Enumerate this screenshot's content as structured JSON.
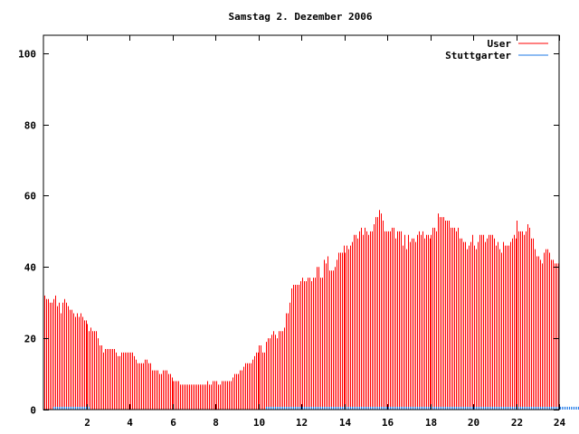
{
  "chart_data": {
    "type": "bar",
    "style": "impulses",
    "title": "Samstag 2. Dezember 2006",
    "xlabel": "",
    "ylabel": "",
    "xlim": [
      0,
      24
    ],
    "ylim": [
      0,
      105
    ],
    "x_step_minutes": 5,
    "xticks": [
      2,
      4,
      6,
      8,
      10,
      12,
      14,
      16,
      18,
      20,
      22,
      24
    ],
    "yticks": [
      0,
      20,
      40,
      60,
      80,
      100
    ],
    "grid": false,
    "legend_position": "top-right",
    "series": [
      {
        "name": "User",
        "color": "#ff0000",
        "values": [
          32,
          31,
          31,
          30,
          30,
          31,
          32,
          29,
          30,
          27,
          30,
          31,
          30,
          29,
          28,
          28,
          27,
          26,
          27,
          26,
          27,
          26,
          25,
          25,
          24,
          22,
          23,
          22,
          22,
          22,
          20,
          18,
          18,
          16,
          17,
          17,
          17,
          17,
          17,
          17,
          16,
          15,
          15,
          16,
          16,
          16,
          16,
          16,
          16,
          16,
          15,
          14,
          13,
          13,
          13,
          13,
          14,
          14,
          13,
          13,
          11,
          11,
          11,
          11,
          10,
          10,
          11,
          11,
          11,
          10,
          10,
          9,
          8,
          8,
          8,
          8,
          7,
          7,
          7,
          7,
          7,
          7,
          7,
          7,
          7,
          7,
          7,
          7,
          7,
          7,
          7,
          8,
          7,
          7,
          8,
          8,
          8,
          7,
          7,
          8,
          8,
          8,
          8,
          8,
          8,
          9,
          10,
          10,
          10,
          11,
          11,
          12,
          13,
          13,
          13,
          13,
          14,
          15,
          16,
          16,
          18,
          18,
          16,
          16,
          19,
          20,
          20,
          21,
          22,
          21,
          20,
          22,
          22,
          22,
          23,
          27,
          27,
          30,
          34,
          35,
          35,
          35,
          35,
          36,
          37,
          36,
          36,
          37,
          37,
          36,
          37,
          37,
          40,
          40,
          37,
          37,
          42,
          41,
          43,
          39,
          39,
          39,
          40,
          42,
          44,
          44,
          44,
          46,
          44,
          46,
          45,
          46,
          47,
          49,
          49,
          48,
          50,
          51,
          49,
          51,
          50,
          49,
          50,
          50,
          52,
          54,
          54,
          56,
          55,
          53,
          50,
          50,
          50,
          50,
          51,
          51,
          48,
          50,
          50,
          50,
          46,
          49,
          45,
          49,
          47,
          48,
          48,
          47,
          49,
          50,
          49,
          50,
          48,
          49,
          49,
          48,
          49,
          51,
          51,
          50,
          55,
          54,
          54,
          54,
          53,
          53,
          53,
          51,
          51,
          51,
          50,
          51,
          48,
          48,
          47,
          47,
          45,
          46,
          47,
          49,
          46,
          45,
          47,
          49,
          49,
          49,
          47,
          48,
          49,
          49,
          49,
          48,
          46,
          47,
          45,
          44,
          47,
          46,
          46,
          46,
          47,
          48,
          49,
          48,
          53,
          50,
          50,
          50,
          49,
          50,
          52,
          51,
          48,
          48,
          45,
          43,
          43,
          42,
          41,
          44,
          45,
          45,
          44,
          42,
          42,
          41,
          41,
          41
        ]
      },
      {
        "name": "Stuttgarter",
        "color": "#1e78e6",
        "values": [
          0,
          0,
          0,
          0,
          0,
          1,
          1,
          1,
          1,
          1,
          1,
          1,
          1,
          1,
          1,
          1,
          1,
          1,
          1,
          1,
          1,
          1,
          1,
          1,
          1,
          1,
          0,
          0,
          0,
          0,
          0,
          0,
          0,
          0,
          0,
          0,
          0,
          0,
          0,
          0,
          0,
          0,
          0,
          0,
          0,
          0,
          0,
          0,
          0,
          0,
          0,
          0,
          0,
          0,
          0,
          0,
          0,
          0,
          0,
          0,
          0,
          0,
          0,
          0,
          0,
          0,
          0,
          0,
          0,
          0,
          0,
          0,
          0,
          0,
          0,
          0,
          0,
          0,
          0,
          0,
          0,
          0,
          0,
          0,
          0,
          0,
          0,
          0,
          0,
          0,
          0,
          0,
          0,
          0,
          0,
          0,
          0,
          0,
          0,
          0,
          0,
          0,
          0,
          0,
          0,
          0,
          0,
          0,
          0,
          0,
          0,
          0,
          0,
          0,
          0,
          0,
          0,
          0,
          0,
          0,
          0,
          0,
          0,
          0,
          1,
          1,
          1,
          1,
          1,
          1,
          1,
          1,
          1,
          1,
          1,
          1,
          1,
          1,
          1,
          1,
          1,
          1,
          1,
          1,
          1,
          1,
          1,
          1,
          1,
          1,
          1,
          1,
          1,
          1,
          1,
          1,
          1,
          1,
          1,
          1,
          1,
          1,
          1,
          1,
          1,
          1,
          1,
          1,
          1,
          1,
          1,
          1,
          1,
          1,
          1,
          1,
          1,
          1,
          1,
          1,
          1,
          1,
          1,
          1,
          1,
          1,
          1,
          1,
          1,
          1,
          1,
          1,
          1,
          1,
          1,
          1,
          1,
          1,
          1,
          1,
          1,
          1,
          1,
          1,
          1,
          1,
          1,
          1,
          1,
          1,
          1,
          1,
          1,
          1,
          1,
          1,
          1,
          1,
          1,
          1,
          1,
          1,
          1,
          1,
          1,
          1,
          1,
          1,
          1,
          1,
          1,
          1,
          1,
          1,
          1,
          1,
          1,
          1,
          1,
          1,
          1,
          1,
          1,
          1,
          1,
          1,
          1,
          1,
          1,
          1,
          1,
          1,
          1,
          1,
          1,
          1,
          1,
          1,
          1,
          1,
          1,
          1,
          1,
          1,
          1,
          1,
          1,
          1,
          1,
          1,
          1,
          1,
          1,
          1,
          1,
          1,
          1,
          1,
          1,
          1,
          1,
          1,
          1,
          1,
          1,
          1,
          1,
          1,
          1,
          1,
          1,
          1,
          1,
          1,
          1,
          1,
          1,
          1,
          1,
          1,
          1,
          1,
          1,
          1,
          1,
          1,
          1
        ]
      }
    ]
  }
}
